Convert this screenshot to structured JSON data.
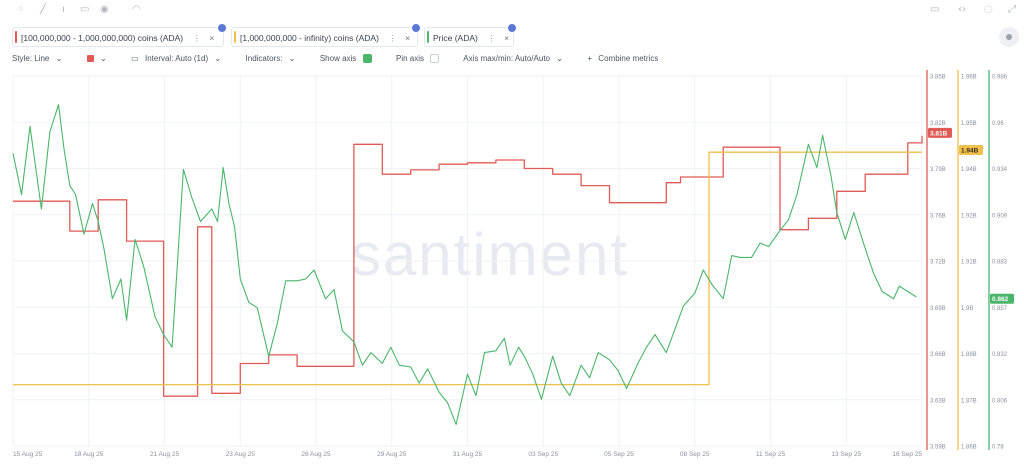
{
  "metrics": [
    {
      "label": "[100,000,000 - 1,000,000,000) coins (ADA)",
      "color": "#e05b55"
    },
    {
      "label": "[1,000,000,000 - infinity) coins (ADA)",
      "color": "#f0c14a"
    },
    {
      "label": "Price (ADA)",
      "color": "#4bb56a"
    }
  ],
  "toolbar": {
    "style": "Style: Line",
    "interval": "Interval: Auto (1d)",
    "indicators": "Indicators:",
    "show_axis": "Show axis",
    "pin_axis": "Pin axis",
    "axis_maxmin": "Axis max/min: Auto/Auto",
    "combine": "Combine metrics"
  },
  "watermark": "santiment",
  "chart_data": {
    "type": "line",
    "x_ticks": [
      "15 Aug 25",
      "18 Aug 25",
      "21 Aug 25",
      "23 Aug 25",
      "26 Aug 25",
      "29 Aug 25",
      "31 Aug 25",
      "03 Sep 25",
      "05 Sep 25",
      "08 Sep 25",
      "11 Sep 25",
      "13 Sep 25",
      "16 Sep 25"
    ],
    "axes": [
      {
        "id": "red",
        "ticks": [
          "3.85B",
          "3.82B",
          "3.79B",
          "3.76B",
          "3.72B",
          "3.69B",
          "3.66B",
          "3.63B",
          "3.59B"
        ],
        "range": [
          3.59,
          3.85
        ],
        "current": "3.81B",
        "color": "#e05b55"
      },
      {
        "id": "yellow",
        "ticks": [
          "1.96B",
          "1.95B",
          "1.94B",
          "1.92B",
          "1.91B",
          "1.9B",
          "1.88B",
          "1.87B",
          "1.86B"
        ],
        "range": [
          1.86,
          1.96
        ],
        "current": "1.94B",
        "color": "#f0c14a"
      },
      {
        "id": "green",
        "ticks": [
          "0.986",
          "0.96",
          "0.934",
          "0.909",
          "0.883",
          "0.857",
          "0.832",
          "0.806",
          "0.78"
        ],
        "range": [
          0.78,
          0.986
        ],
        "current": "0.862",
        "color": "#4bb56a"
      }
    ],
    "series": [
      {
        "name": "[100,000,000 - 1,000,000,000) coins (ADA)",
        "axis": "red",
        "step": true,
        "x": [
          0,
          1,
          2,
          3,
          4,
          5,
          5.3,
          6,
          6.5,
          7,
          7.5,
          8,
          9,
          10,
          11,
          12,
          13,
          14,
          15,
          16,
          17,
          18,
          19,
          20,
          21,
          22,
          23,
          23.5,
          24,
          25,
          26,
          27,
          28,
          29,
          30,
          31.5,
          32
        ],
        "values": [
          3.762,
          3.762,
          3.741,
          3.763,
          3.734,
          3.734,
          3.625,
          3.625,
          3.744,
          3.627,
          3.627,
          3.648,
          3.654,
          3.646,
          3.646,
          3.802,
          3.781,
          3.784,
          3.788,
          3.789,
          3.791,
          3.785,
          3.781,
          3.773,
          3.761,
          3.761,
          3.775,
          3.779,
          3.779,
          3.8,
          3.8,
          3.742,
          3.75,
          3.769,
          3.781,
          3.803,
          3.808
        ]
      },
      {
        "name": "[1,000,000,000 - infinity) coins (ADA)",
        "axis": "yellow",
        "step": true,
        "x": [
          0,
          24.4,
          24.5,
          32
        ],
        "values": [
          1.8766,
          1.8766,
          1.9394,
          1.9394
        ]
      },
      {
        "name": "Price (ADA)",
        "axis": "green",
        "x": [
          0,
          0.3,
          0.6,
          1,
          1.3,
          1.6,
          1.8,
          2,
          2.2,
          2.5,
          2.8,
          3,
          3.2,
          3.5,
          3.8,
          4,
          4.3,
          4.6,
          5,
          5.3,
          5.6,
          6,
          6.3,
          6.6,
          7,
          7.2,
          7.4,
          7.6,
          7.8,
          8,
          8.3,
          8.6,
          9,
          9.3,
          9.6,
          10,
          10.3,
          10.6,
          11,
          11.3,
          11.6,
          12,
          12.3,
          12.6,
          13,
          13.3,
          13.6,
          14,
          14.3,
          14.6,
          15,
          15.3,
          15.6,
          16,
          16.3,
          16.6,
          17,
          17.3,
          17.5,
          17.8,
          18,
          18.3,
          18.6,
          19,
          19.3,
          19.6,
          20,
          20.3,
          20.6,
          21,
          21.3,
          21.6,
          22,
          22.3,
          22.6,
          23,
          23.3,
          23.6,
          24,
          24.3,
          24.6,
          25,
          25.3,
          25.6,
          26,
          26.3,
          26.6,
          27,
          27.3,
          27.6,
          28,
          28.3,
          28.5,
          28.8,
          29,
          29.3,
          29.6,
          30,
          30.3,
          30.6,
          31,
          31.2,
          31.5,
          31.8
        ],
        "values": [
          0.943,
          0.92,
          0.958,
          0.912,
          0.955,
          0.97,
          0.945,
          0.925,
          0.92,
          0.898,
          0.915,
          0.905,
          0.89,
          0.862,
          0.873,
          0.85,
          0.895,
          0.88,
          0.852,
          0.842,
          0.835,
          0.934,
          0.918,
          0.905,
          0.912,
          0.905,
          0.935,
          0.915,
          0.902,
          0.873,
          0.86,
          0.857,
          0.83,
          0.848,
          0.872,
          0.872,
          0.873,
          0.878,
          0.862,
          0.867,
          0.844,
          0.838,
          0.825,
          0.832,
          0.826,
          0.835,
          0.825,
          0.824,
          0.815,
          0.823,
          0.81,
          0.804,
          0.792,
          0.82,
          0.808,
          0.832,
          0.833,
          0.84,
          0.825,
          0.835,
          0.83,
          0.82,
          0.806,
          0.83,
          0.815,
          0.808,
          0.825,
          0.818,
          0.832,
          0.828,
          0.822,
          0.812,
          0.826,
          0.835,
          0.842,
          0.832,
          0.845,
          0.858,
          0.865,
          0.878,
          0.87,
          0.862,
          0.886,
          0.885,
          0.885,
          0.893,
          0.891,
          0.9,
          0.906,
          0.92,
          0.948,
          0.935,
          0.953,
          0.93,
          0.91,
          0.895,
          0.91,
          0.89,
          0.876,
          0.866,
          0.862,
          0.869,
          0.866,
          0.863
        ]
      }
    ]
  }
}
